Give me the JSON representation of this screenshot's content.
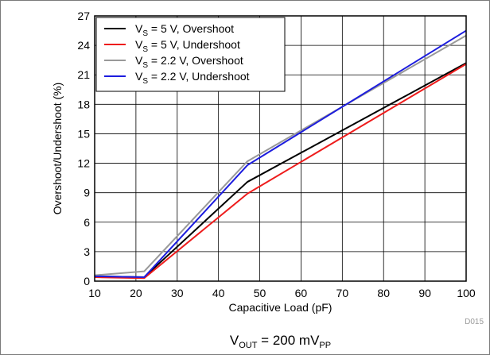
{
  "chart_data": {
    "type": "line",
    "xlabel": "Capacitive Load (pF)",
    "ylabel": "Overshoot/Undershoot (%)",
    "xlim": [
      10,
      100
    ],
    "ylim": [
      0,
      27
    ],
    "xticks": [
      10,
      20,
      30,
      40,
      50,
      60,
      70,
      80,
      90,
      100
    ],
    "yticks": [
      0,
      3,
      6,
      9,
      12,
      15,
      18,
      21,
      24,
      27
    ],
    "grid": true,
    "legend_position": "top-left",
    "figure_code": "D015",
    "caption": {
      "main": "V",
      "sub1": "OUT",
      "mid": " = 200 mV",
      "sub2": "PP"
    },
    "series": [
      {
        "name": "V_S = 5 V, Overshoot",
        "legend": {
          "pre": "V",
          "sub": "S",
          "post": " = 5 V, Overshoot"
        },
        "color": "#000000",
        "x": [
          10,
          22,
          47,
          100
        ],
        "y": [
          0.5,
          0.4,
          10.1,
          22.2
        ]
      },
      {
        "name": "V_S = 5 V, Undershoot",
        "legend": {
          "pre": "V",
          "sub": "S",
          "post": " = 5 V, Undershoot"
        },
        "color": "#ee1c1c",
        "x": [
          10,
          22,
          47,
          100
        ],
        "y": [
          0.4,
          0.3,
          8.9,
          22.1
        ]
      },
      {
        "name": "V_S = 2.2 V, Overshoot",
        "legend": {
          "pre": "V",
          "sub": "S",
          "post": " = 2.2 V, Overshoot"
        },
        "color": "#999999",
        "x": [
          10,
          22,
          47,
          100
        ],
        "y": [
          0.6,
          1.0,
          12.2,
          25.0
        ]
      },
      {
        "name": "V_S = 2.2 V, Undershoot",
        "legend": {
          "pre": "V",
          "sub": "S",
          "post": " = 2.2 V, Undershoot"
        },
        "color": "#1c1cde",
        "x": [
          10,
          22,
          47,
          100
        ],
        "y": [
          0.5,
          0.4,
          11.8,
          25.5
        ]
      }
    ]
  }
}
